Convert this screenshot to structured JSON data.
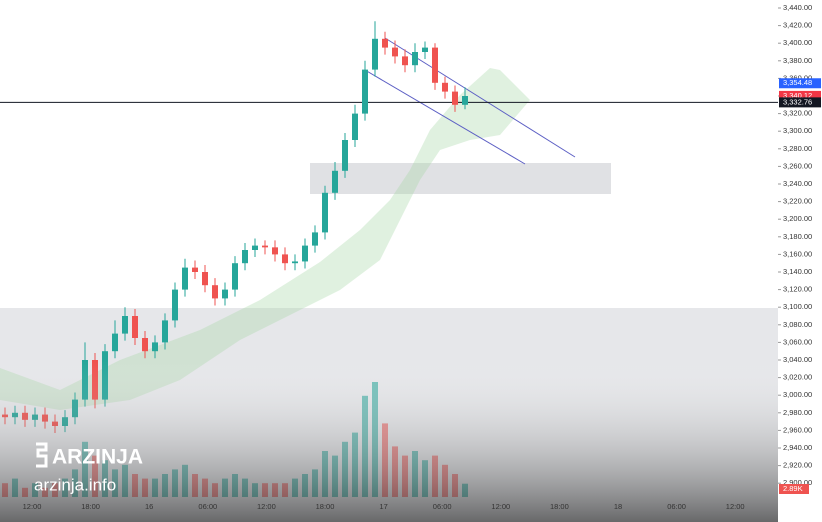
{
  "chart_data": {
    "type": "candlestick",
    "open": [
      2978,
      2975,
      2980,
      2972,
      2978,
      2970,
      2965,
      2975,
      2995,
      3040,
      2995,
      3050,
      3070,
      3090,
      3065,
      3050,
      3060,
      3085,
      3120,
      3145,
      3140,
      3125,
      3110,
      3120,
      3150,
      3165,
      3170,
      3168,
      3160,
      3150,
      3152,
      3170,
      3185,
      3230,
      3255,
      3290,
      3320,
      3370,
      3405,
      3395,
      3385,
      3375,
      3390,
      3395,
      3355,
      3345,
      3330
    ],
    "high": [
      2986,
      2988,
      2988,
      2986,
      2986,
      2978,
      2983,
      3003,
      3060,
      3048,
      3058,
      3085,
      3100,
      3098,
      3073,
      3068,
      3093,
      3128,
      3155,
      3153,
      3148,
      3133,
      3128,
      3158,
      3173,
      3178,
      3176,
      3176,
      3168,
      3160,
      3178,
      3193,
      3238,
      3265,
      3298,
      3330,
      3380,
      3425,
      3413,
      3403,
      3393,
      3400,
      3402,
      3400,
      3362,
      3352,
      3350
    ],
    "low": [
      2967,
      2967,
      2964,
      2964,
      2962,
      2957,
      2958,
      2967,
      2987,
      2985,
      2987,
      3042,
      3062,
      3057,
      3042,
      3042,
      3052,
      3077,
      3112,
      3132,
      3117,
      3102,
      3102,
      3112,
      3142,
      3157,
      3160,
      3152,
      3142,
      3142,
      3144,
      3162,
      3177,
      3222,
      3247,
      3282,
      3312,
      3362,
      3387,
      3377,
      3367,
      3367,
      3382,
      3347,
      3337,
      3322,
      3325
    ],
    "close": [
      2975,
      2980,
      2972,
      2978,
      2970,
      2965,
      2975,
      2995,
      3040,
      2995,
      3050,
      3070,
      3090,
      3065,
      3050,
      3060,
      3085,
      3120,
      3145,
      3140,
      3125,
      3110,
      3120,
      3150,
      3165,
      3170,
      3168,
      3160,
      3150,
      3152,
      3170,
      3185,
      3230,
      3255,
      3290,
      3320,
      3370,
      3405,
      3395,
      3385,
      3375,
      3390,
      3395,
      3355,
      3345,
      3330,
      3340
    ],
    "volume": [
      3,
      4,
      2,
      3,
      2,
      3,
      4,
      6,
      12,
      9,
      8,
      6,
      7,
      5,
      4,
      4,
      5,
      6,
      7,
      5,
      4,
      3,
      4,
      5,
      4,
      3,
      3,
      3,
      3,
      4,
      5,
      6,
      10,
      9,
      12,
      14,
      22,
      25,
      16,
      11,
      9,
      10,
      8,
      9,
      7,
      5,
      2.89
    ],
    "volume_label": "2.89K",
    "up_color": "#26a69a",
    "down_color": "#ef5350",
    "ylim": [
      2900,
      3440
    ],
    "yticks": [
      {
        "value": 2900,
        "label": "2,900.00"
      },
      {
        "value": 2920,
        "label": "2,920.00"
      },
      {
        "value": 2940,
        "label": "2,940.00"
      },
      {
        "value": 2960,
        "label": "2,960.00"
      },
      {
        "value": 2980,
        "label": "2,980.00"
      },
      {
        "value": 3000,
        "label": "3,000.00"
      },
      {
        "value": 3020,
        "label": "3,020.00"
      },
      {
        "value": 3040,
        "label": "3,040.00"
      },
      {
        "value": 3060,
        "label": "3,060.00"
      },
      {
        "value": 3080,
        "label": "3,080.00"
      },
      {
        "value": 3100,
        "label": "3,100.00"
      },
      {
        "value": 3120,
        "label": "3,120.00"
      },
      {
        "value": 3140,
        "label": "3,140.00"
      },
      {
        "value": 3160,
        "label": "3,160.00"
      },
      {
        "value": 3180,
        "label": "3,180.00"
      },
      {
        "value": 3200,
        "label": "3,200.00"
      },
      {
        "value": 3220,
        "label": "3,220.00"
      },
      {
        "value": 3240,
        "label": "3,240.00"
      },
      {
        "value": 3260,
        "label": "3,260.00"
      },
      {
        "value": 3280,
        "label": "3,280.00"
      },
      {
        "value": 3300,
        "label": "3,300.00"
      },
      {
        "value": 3320,
        "label": "3,320.00"
      },
      {
        "value": 3340,
        "label": "3,340.00"
      },
      {
        "value": 3360,
        "label": "3,360.00"
      },
      {
        "value": 3380,
        "label": "3,380.00"
      },
      {
        "value": 3400,
        "label": "3,400.00"
      },
      {
        "value": 3420,
        "label": "3,420.00"
      },
      {
        "value": 3440,
        "label": "3,440.00"
      }
    ],
    "x_labels": [
      "12:00",
      "18:00",
      "16",
      "06:00",
      "12:00",
      "18:00",
      "17",
      "06:00",
      "12:00",
      "18:00",
      "18",
      "06:00",
      "12:00"
    ],
    "price_labels": [
      {
        "value": 3354.48,
        "label": "3,354.48",
        "color": "#2962ff"
      },
      {
        "value": 3340.12,
        "label": "3,340.12",
        "color": "#f23645"
      },
      {
        "value": 3332.76,
        "label": "3,332.76",
        "color": "#131722"
      }
    ],
    "horizontal_line": 3332.76
  },
  "watermark": {
    "brand": "ARZINJA",
    "site": "arzinja.info"
  }
}
